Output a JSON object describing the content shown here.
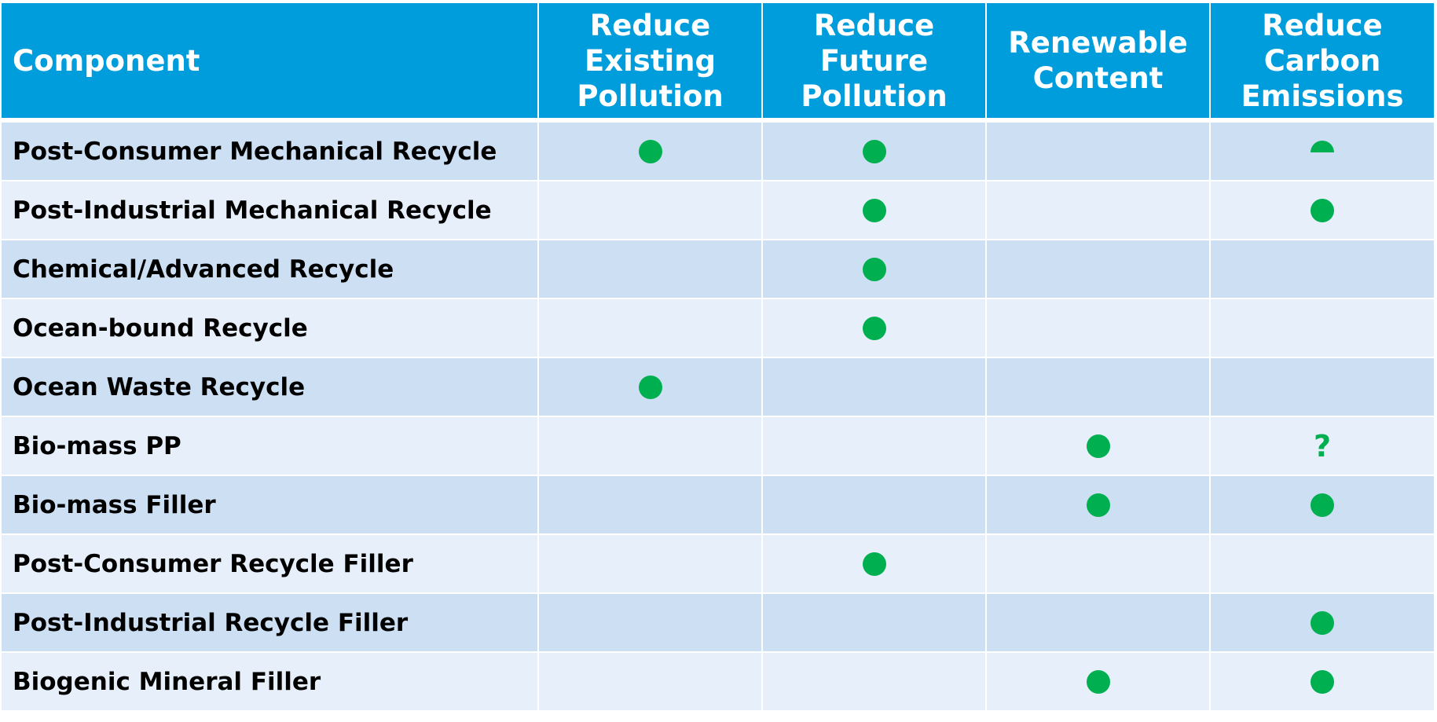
{
  "table": {
    "headers": [
      [
        "Component"
      ],
      [
        "Reduce",
        "Existing",
        "Pollution"
      ],
      [
        "Reduce",
        "Future",
        "Pollution"
      ],
      [
        "Renewable",
        "Content"
      ],
      [
        "Reduce",
        "Carbon",
        "Emissions"
      ]
    ],
    "rows": [
      {
        "component": "Post-Consumer Mechanical Recycle",
        "marks": [
          "dot",
          "dot",
          "",
          "half-dot"
        ]
      },
      {
        "component": "Post-Industrial Mechanical Recycle",
        "marks": [
          "",
          "dot",
          "",
          "dot"
        ]
      },
      {
        "component": "Chemical/Advanced Recycle",
        "marks": [
          "",
          "dot",
          "",
          ""
        ]
      },
      {
        "component": "Ocean-bound Recycle",
        "marks": [
          "",
          "dot",
          "",
          ""
        ]
      },
      {
        "component": "Ocean Waste Recycle",
        "marks": [
          "dot",
          "",
          "",
          ""
        ]
      },
      {
        "component": "Bio-mass PP",
        "marks": [
          "",
          "",
          "dot",
          "?"
        ]
      },
      {
        "component": "Bio-mass Filler",
        "marks": [
          "",
          "",
          "dot",
          "dot"
        ]
      },
      {
        "component": "Post-Consumer Recycle Filler",
        "marks": [
          "",
          "dot",
          "",
          ""
        ]
      },
      {
        "component": "Post-Industrial Recycle Filler",
        "marks": [
          "",
          "",
          "",
          "dot"
        ]
      },
      {
        "component": "Biogenic Mineral Filler",
        "marks": [
          "",
          "",
          "dot",
          "dot"
        ]
      }
    ]
  },
  "colors": {
    "header_bg": "#009ddd",
    "row_odd": "#ccdff3",
    "row_even": "#e7f0fa",
    "mark": "#00b050"
  },
  "icons": {
    "dot": "filled-circle-icon",
    "half-dot": "half-circle-icon",
    "?": "question-mark-icon"
  }
}
